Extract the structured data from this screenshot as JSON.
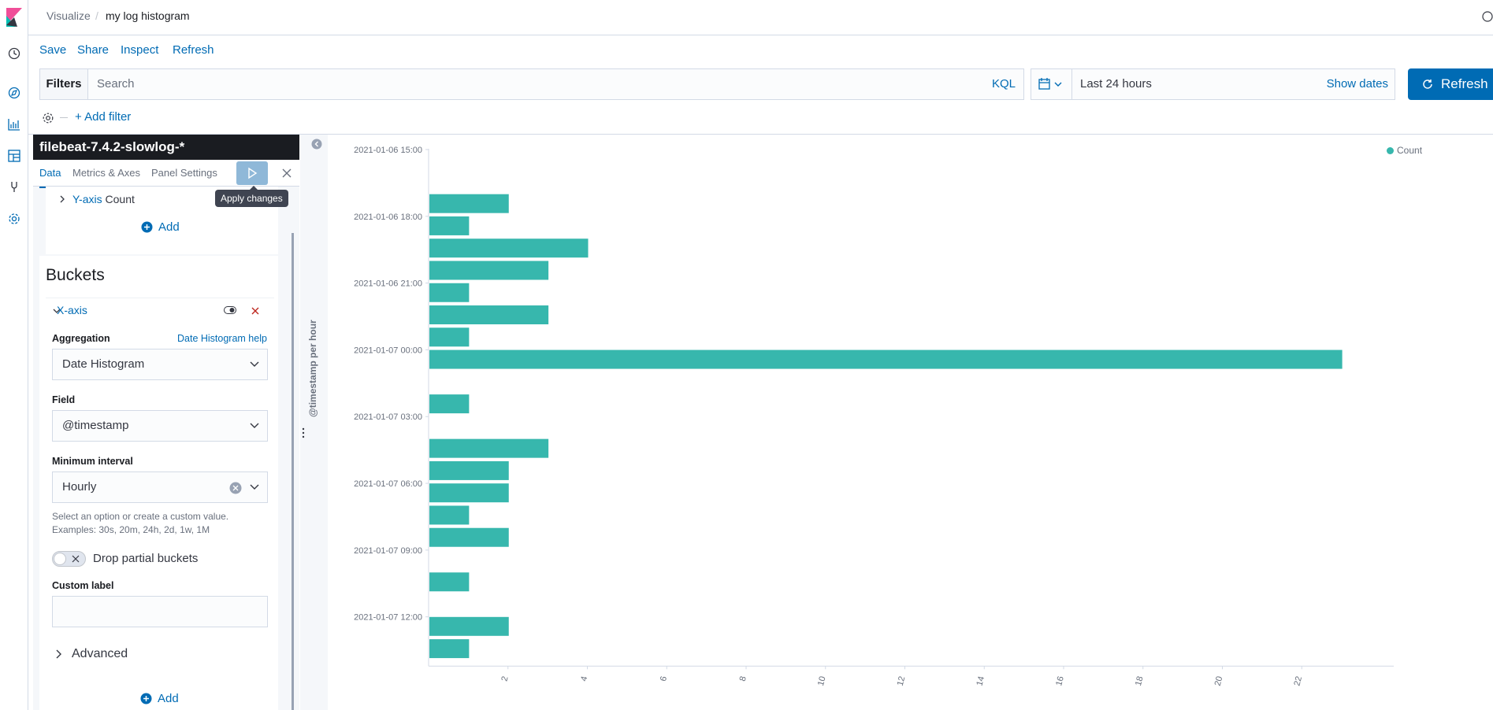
{
  "header": {
    "breadcrumb_parent": "Visualize",
    "breadcrumb_current": "my log histogram"
  },
  "topmenu": {
    "save": "Save",
    "share": "Share",
    "inspect": "Inspect",
    "refresh": "Refresh"
  },
  "query": {
    "filters_label": "Filters",
    "search_placeholder": "Search",
    "language": "KQL",
    "time_range": "Last 24 hours",
    "show_dates": "Show dates",
    "refresh_button": "Refresh",
    "add_filter": "+ Add filter"
  },
  "sidebar": {
    "index_pattern": "filebeat-7.4.2-slowlog-*",
    "tabs": [
      "Data",
      "Metrics & Axes",
      "Panel Settings"
    ],
    "apply_tooltip": "Apply changes",
    "y_axis_label": "Y-axis",
    "y_axis_agg": "Count",
    "add_label": "Add",
    "buckets_title": "Buckets",
    "x_axis_label": "X-axis",
    "aggregation_label": "Aggregation",
    "aggregation_help": "Date Histogram help",
    "aggregation_value": "Date Histogram",
    "field_label": "Field",
    "field_value": "@timestamp",
    "interval_label": "Minimum interval",
    "interval_value": "Hourly",
    "interval_hint_1": "Select an option or create a custom value.",
    "interval_hint_2": "Examples: 30s, 20m, 24h, 2d, 1w, 1M",
    "drop_partial_label": "Drop partial buckets",
    "custom_label_label": "Custom label",
    "custom_label_value": "",
    "advanced_label": "Advanced"
  },
  "colors": {
    "accent": "#006bb4",
    "bar": "#37b7ad",
    "dark": "#1a1c21"
  },
  "chart_data": {
    "type": "bar",
    "orientation": "horizontal",
    "ylabel": "@timestamp per hour",
    "legend": [
      "Count"
    ],
    "legend_position": "top-right",
    "y_tick_labels": [
      "2021-01-06 15:00",
      "2021-01-06 18:00",
      "2021-01-06 21:00",
      "2021-01-07 00:00",
      "2021-01-07 03:00",
      "2021-01-07 06:00",
      "2021-01-07 09:00",
      "2021-01-07 12:00"
    ],
    "x_ticks": [
      2,
      4,
      6,
      8,
      10,
      12,
      14,
      16,
      18,
      20,
      22
    ],
    "xlim": [
      0,
      24
    ],
    "categories": [
      "2021-01-06 15:00",
      "2021-01-06 16:00",
      "2021-01-06 17:00",
      "2021-01-06 18:00",
      "2021-01-06 19:00",
      "2021-01-06 20:00",
      "2021-01-06 21:00",
      "2021-01-06 22:00",
      "2021-01-06 23:00",
      "2021-01-07 00:00",
      "2021-01-07 01:00",
      "2021-01-07 02:00",
      "2021-01-07 03:00",
      "2021-01-07 04:00",
      "2021-01-07 05:00",
      "2021-01-07 06:00",
      "2021-01-07 07:00",
      "2021-01-07 08:00",
      "2021-01-07 09:00",
      "2021-01-07 10:00",
      "2021-01-07 11:00",
      "2021-01-07 12:00",
      "2021-01-07 13:00"
    ],
    "series": [
      {
        "name": "Count",
        "values": [
          0,
          0,
          2,
          1,
          4,
          3,
          1,
          3,
          1,
          23,
          0,
          1,
          0,
          3,
          2,
          2,
          1,
          2,
          0,
          1,
          0,
          2,
          1
        ]
      }
    ]
  }
}
